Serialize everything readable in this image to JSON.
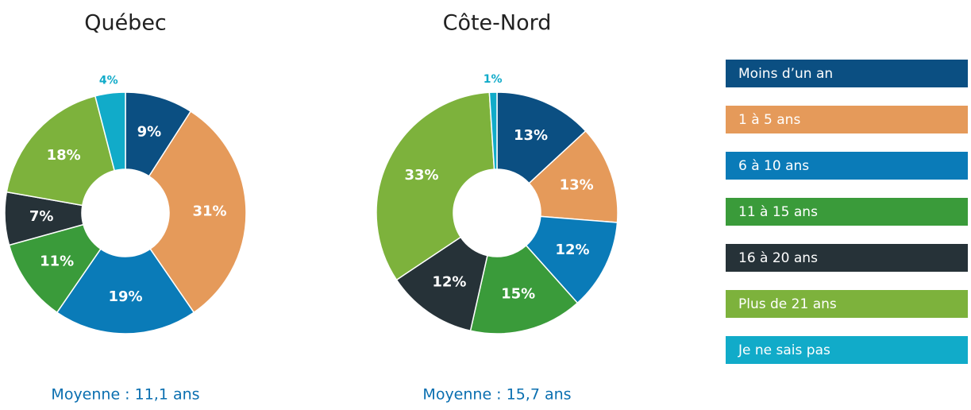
{
  "chart_data": [
    {
      "type": "pie",
      "title": "Québec",
      "categories": [
        "Moins d’un an",
        "1 à 5 ans",
        "6 à 10 ans",
        "11 à 15 ans",
        "16 à 20 ans",
        "Plus de 21 ans",
        "Je ne sais pas"
      ],
      "values": [
        9,
        31,
        19,
        11,
        7,
        18,
        4
      ],
      "value_labels": [
        "9%",
        "31%",
        "19%",
        "11%",
        "7%",
        "18%",
        "4%"
      ],
      "colors": [
        "#0b4f82",
        "#e59a5a",
        "#0a7bb8",
        "#3a9b3a",
        "#263238",
        "#7db23c",
        "#11abc9"
      ],
      "note": "Moyenne : 11,1 ans"
    },
    {
      "type": "pie",
      "title": "Côte-Nord",
      "categories": [
        "Moins d’un an",
        "1 à 5 ans",
        "6 à 10 ans",
        "11 à 15 ans",
        "16 à 20 ans",
        "Plus de 21 ans",
        "Je ne sais pas"
      ],
      "values": [
        13,
        13,
        12,
        15,
        12,
        33,
        1
      ],
      "value_labels": [
        "13%",
        "13%",
        "12%",
        "15%",
        "12%",
        "33%",
        "1%"
      ],
      "colors": [
        "#0b4f82",
        "#e59a5a",
        "#0a7bb8",
        "#3a9b3a",
        "#263238",
        "#7db23c",
        "#11abc9"
      ],
      "note": "Moyenne : 15,7 ans"
    }
  ]
}
